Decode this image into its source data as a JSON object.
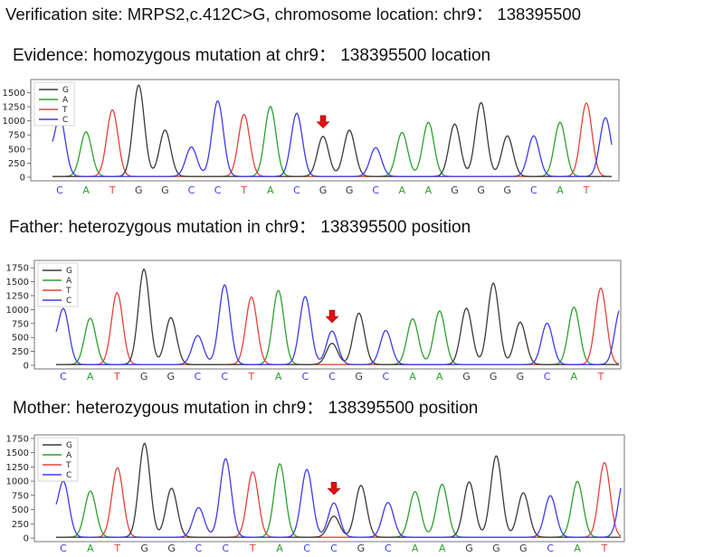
{
  "site_heading": "Verification site: MRPS2,c.412C>G, chromosome location: chr9： 138395500",
  "legend": [
    {
      "label": "G",
      "color": "#3a3a3a"
    },
    {
      "label": "A",
      "color": "#2ca02c"
    },
    {
      "label": "T",
      "color": "#e8403a"
    },
    {
      "label": "C",
      "color": "#3b3bf0"
    }
  ],
  "base_colors": {
    "G": "#3a3a3a",
    "A": "#2ca02c",
    "T": "#e8403a",
    "C": "#3b3bf0"
  },
  "marker_color": "#e01010",
  "chart_data": [
    {
      "type": "line",
      "title": "Evidence: homozygous mutation at chr9： 138395500 location",
      "yticks": [
        0,
        250,
        500,
        750,
        1000,
        1250,
        1500
      ],
      "ylim": [
        0,
        1700
      ],
      "grid": false,
      "legend_position": "top-left",
      "bases": [
        "C",
        "A",
        "T",
        "G",
        "G",
        "C",
        "C",
        "T",
        "A",
        "C",
        "G",
        "G",
        "C",
        "A",
        "A",
        "G",
        "G",
        "G",
        "C",
        "A",
        "T"
      ],
      "peaks": [
        {
          "base": "C",
          "height": 1050
        },
        {
          "base": "A",
          "height": 790
        },
        {
          "base": "T",
          "height": 1180
        },
        {
          "base": "G",
          "height": 1620
        },
        {
          "base": "G",
          "height": 820
        },
        {
          "base": "C",
          "height": 520
        },
        {
          "base": "C",
          "height": 1340
        },
        {
          "base": "T",
          "height": 1100
        },
        {
          "base": "A",
          "height": 1240
        },
        {
          "base": "C",
          "height": 1120
        },
        {
          "base": "G",
          "height": 710
        },
        {
          "base": "G",
          "height": 820
        },
        {
          "base": "C",
          "height": 510
        },
        {
          "base": "A",
          "height": 780
        },
        {
          "base": "A",
          "height": 960
        },
        {
          "base": "G",
          "height": 930
        },
        {
          "base": "G",
          "height": 1310
        },
        {
          "base": "G",
          "height": 720
        },
        {
          "base": "C",
          "height": 720
        },
        {
          "base": "A",
          "height": 960
        },
        {
          "base": "T",
          "height": 1300
        }
      ],
      "secondary_peaks": [],
      "mutation_index": 10,
      "trailing_peak": {
        "base": "C",
        "height": 1040
      }
    },
    {
      "type": "line",
      "title": "Father: heterozygous mutation in chr9： 138395500 position",
      "yticks": [
        0,
        250,
        500,
        750,
        1000,
        1250,
        1500,
        1750
      ],
      "ylim": [
        0,
        1850
      ],
      "grid": false,
      "legend_position": "top-left",
      "bases": [
        "C",
        "A",
        "T",
        "G",
        "G",
        "C",
        "C",
        "T",
        "A",
        "C",
        "C",
        "G",
        "C",
        "A",
        "A",
        "G",
        "G",
        "G",
        "C",
        "A",
        "T"
      ],
      "peaks": [
        {
          "base": "C",
          "height": 1000
        },
        {
          "base": "A",
          "height": 830
        },
        {
          "base": "T",
          "height": 1290
        },
        {
          "base": "G",
          "height": 1710
        },
        {
          "base": "G",
          "height": 840
        },
        {
          "base": "C",
          "height": 520
        },
        {
          "base": "C",
          "height": 1430
        },
        {
          "base": "T",
          "height": 1210
        },
        {
          "base": "A",
          "height": 1330
        },
        {
          "base": "C",
          "height": 1220
        },
        {
          "base": "C",
          "height": 600
        },
        {
          "base": "G",
          "height": 920
        },
        {
          "base": "C",
          "height": 610
        },
        {
          "base": "A",
          "height": 820
        },
        {
          "base": "A",
          "height": 960
        },
        {
          "base": "G",
          "height": 1010
        },
        {
          "base": "G",
          "height": 1460
        },
        {
          "base": "G",
          "height": 760
        },
        {
          "base": "C",
          "height": 740
        },
        {
          "base": "A",
          "height": 1030
        },
        {
          "base": "T",
          "height": 1370
        }
      ],
      "secondary_peaks": [
        {
          "index": 10,
          "base": "G",
          "height": 380
        }
      ],
      "mutation_index": 10,
      "trailing_peak": {
        "base": "C",
        "height": 1000
      }
    },
    {
      "type": "line",
      "title": "Mother: heterozygous mutation in chr9： 138395500 position",
      "yticks": [
        0,
        250,
        500,
        750,
        1000,
        1250,
        1500,
        1750
      ],
      "ylim": [
        0,
        1780
      ],
      "grid": false,
      "legend_position": "top-left",
      "bases": [
        "C",
        "A",
        "T",
        "G",
        "G",
        "C",
        "C",
        "T",
        "A",
        "C",
        "C",
        "G",
        "C",
        "A",
        "A",
        "G",
        "G",
        "G",
        "C",
        "A",
        "T"
      ],
      "peaks": [
        {
          "base": "C",
          "height": 980
        },
        {
          "base": "A",
          "height": 810
        },
        {
          "base": "T",
          "height": 1220
        },
        {
          "base": "G",
          "height": 1650
        },
        {
          "base": "G",
          "height": 860
        },
        {
          "base": "C",
          "height": 520
        },
        {
          "base": "C",
          "height": 1380
        },
        {
          "base": "T",
          "height": 1150
        },
        {
          "base": "A",
          "height": 1290
        },
        {
          "base": "C",
          "height": 1190
        },
        {
          "base": "C",
          "height": 600
        },
        {
          "base": "G",
          "height": 910
        },
        {
          "base": "C",
          "height": 610
        },
        {
          "base": "A",
          "height": 800
        },
        {
          "base": "A",
          "height": 930
        },
        {
          "base": "G",
          "height": 970
        },
        {
          "base": "G",
          "height": 1430
        },
        {
          "base": "G",
          "height": 780
        },
        {
          "base": "C",
          "height": 730
        },
        {
          "base": "A",
          "height": 980
        },
        {
          "base": "T",
          "height": 1310
        }
      ],
      "secondary_peaks": [
        {
          "index": 10,
          "base": "G",
          "height": 370
        }
      ],
      "mutation_index": 10,
      "trailing_peak": {
        "base": "C",
        "height": 1050
      }
    }
  ]
}
